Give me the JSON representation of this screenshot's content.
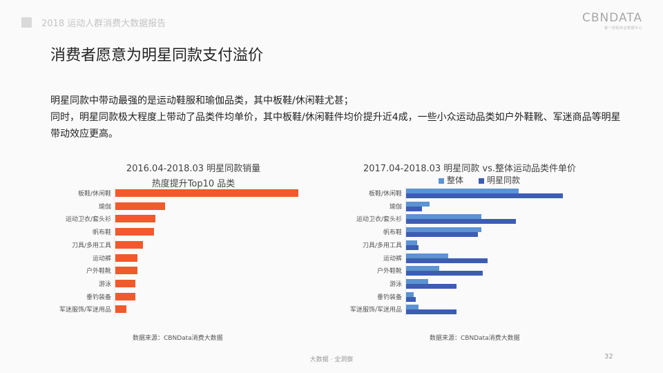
{
  "header": {
    "report_title": "2018 运动人群消费大数据报告",
    "logo_brand": "CBNDATA",
    "logo_sub": "第一财经商业数据中心"
  },
  "page_title": "消费者愿意为明星同款支付溢价",
  "description": {
    "line1": "明星同款中带动最强的是运动鞋服和瑜伽品类，其中板鞋/休闲鞋尤甚；",
    "line2": "同时，明星同款极大程度上带动了品类件均单价，其中板鞋/休闲鞋件均价提升近4成，一些小众运动品类如户外鞋靴、军迷商品等明星带动效应更高。"
  },
  "colors": {
    "orange": "#f05a2d",
    "overall_blue": "#5b93d3",
    "star_blue": "#3d5db3"
  },
  "chart_data": [
    {
      "type": "bar",
      "orientation": "horizontal",
      "title": "2016.04-2018.03 明星同款销量",
      "subtitle": "热度提升Top10 品类",
      "categories": [
        "板鞋/休闲鞋",
        "瑜伽",
        "运动卫衣/套头衫",
        "帆布鞋",
        "刀具/多用工具",
        "运动裤",
        "户外鞋靴",
        "游泳",
        "垂钓装备",
        "军迷服饰/军迷用品"
      ],
      "values": [
        100,
        27,
        22,
        21,
        15,
        12,
        12,
        11,
        11,
        6
      ],
      "value_unit": "relative (no axis shown)",
      "xlabel": "",
      "ylabel": "",
      "grid": false,
      "source": "数据来源：CBNData消费大数据"
    },
    {
      "type": "bar",
      "orientation": "horizontal",
      "title": "2017.04-2018.03 明星同款 vs.整体运动品类件单价",
      "legend": [
        "整体",
        "明星同款"
      ],
      "legend_position": "top",
      "categories": [
        "板鞋/休闲鞋",
        "瑜伽",
        "运动卫衣/套头衫",
        "帆布鞋",
        "刀具/多用工具",
        "运动裤",
        "户外鞋靴",
        "游泳",
        "垂钓装备",
        "军迷服饰/军迷用品"
      ],
      "series": [
        {
          "name": "整体",
          "values": [
            72,
            15,
            48,
            48,
            7,
            27,
            21,
            14,
            5,
            8
          ]
        },
        {
          "name": "明星同款",
          "values": [
            100,
            10,
            70,
            46,
            8,
            52,
            49,
            32,
            6,
            32
          ]
        }
      ],
      "value_unit": "relative (no axis shown)",
      "grid": false,
      "source": "数据来源：CBNData消费大数据"
    }
  ],
  "footer": {
    "tagline": "大数据 · 全洞察",
    "page_number": "32"
  }
}
